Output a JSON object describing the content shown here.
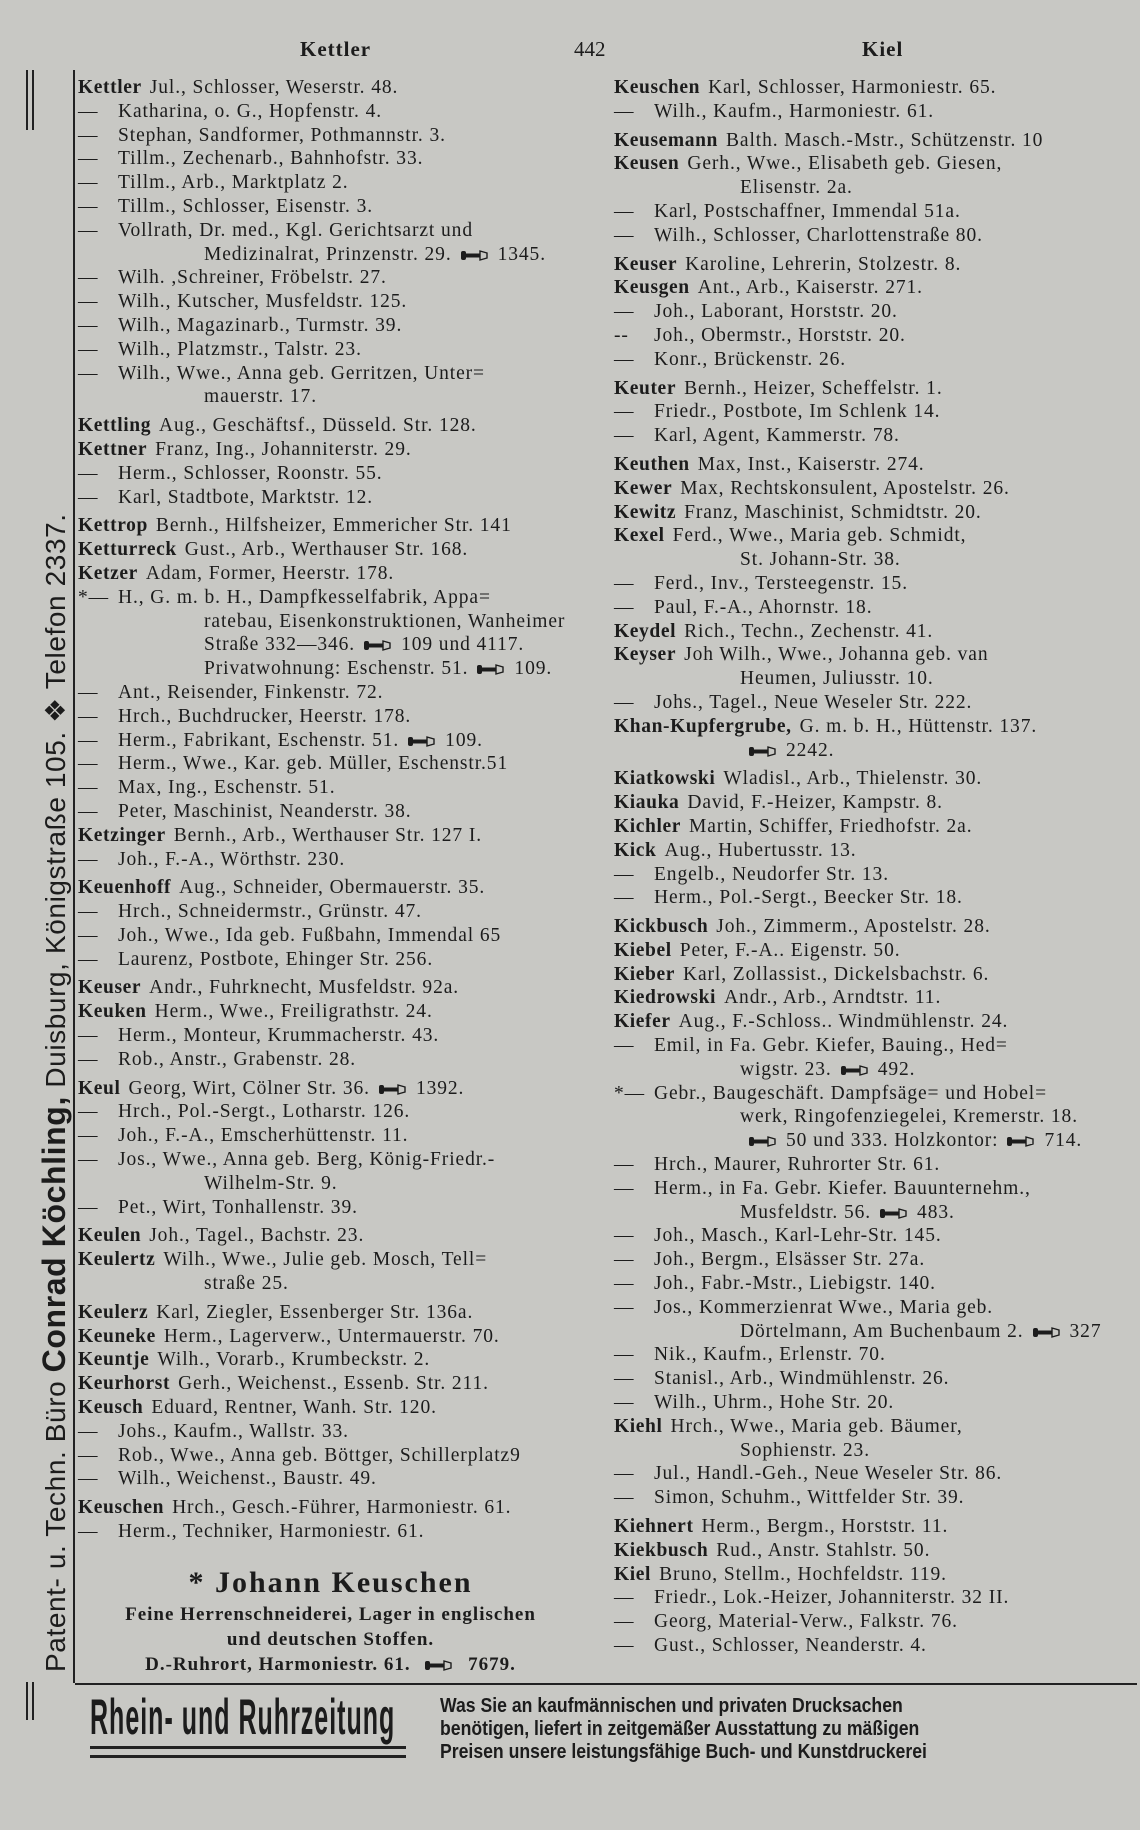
{
  "header": {
    "left": "Kettler",
    "page": "442",
    "right": "Kiel"
  },
  "side_text": {
    "pre": "Patent- u. Techn. Büro ",
    "name": "Conrad Köchling,",
    "post": " Duisburg, Königstraße 105. ❖ Telefon 2337."
  },
  "left_column": [
    {
      "b": "Kettler",
      "t": [
        "Jul., Schlosser, Weserstr. 48."
      ]
    },
    {
      "d": "—",
      "t": [
        "Katharina, o. G., Hopfenstr. 4."
      ]
    },
    {
      "d": "—",
      "t": [
        "Stephan, Sandformer, Pothmannstr. 3."
      ]
    },
    {
      "d": "—",
      "t": [
        "Tillm., Zechenarb., Bahnhofstr. 33."
      ]
    },
    {
      "d": "—",
      "t": [
        "Tillm., Arb., Marktplatz 2."
      ]
    },
    {
      "d": "—",
      "t": [
        "Tillm., Schlosser, Eisenstr. 3."
      ]
    },
    {
      "d": "—",
      "t": [
        "Vollrath, Dr. med., Kgl. Gerichtsarzt und"
      ]
    },
    {
      "i": 1,
      "t": [
        "Medizinalrat, Prinzenstr. 29.",
        "1345."
      ]
    },
    {
      "d": "—",
      "t": [
        "Wilh. ,Schreiner, Fröbelstr. 27."
      ]
    },
    {
      "d": "—",
      "t": [
        "Wilh., Kutscher, Musfeldstr. 125."
      ]
    },
    {
      "d": "—",
      "t": [
        "Wilh., Magazinarb., Turmstr. 39."
      ]
    },
    {
      "d": "—",
      "t": [
        "Wilh., Platzmstr., Talstr. 23."
      ]
    },
    {
      "d": "—",
      "t": [
        "Wilh., Wwe., Anna geb. Gerritzen, Unter="
      ]
    },
    {
      "i": 1,
      "t": [
        "mauerstr. 17."
      ]
    },
    {
      "g": 1,
      "b": "Kettling",
      "t": [
        "Aug., Geschäftsf., Düsseld. Str. 128."
      ]
    },
    {
      "b": "Kettner",
      "t": [
        "Franz, Ing., Johanniterstr. 29."
      ]
    },
    {
      "d": "—",
      "t": [
        "Herm., Schlosser, Roonstr. 55."
      ]
    },
    {
      "d": "—",
      "t": [
        "Karl, Stadtbote, Marktstr. 12."
      ]
    },
    {
      "g": 1,
      "b": "Kettrop",
      "t": [
        "Bernh., Hilfsheizer, Emmericher Str. 141"
      ]
    },
    {
      "b": "Ketturreck",
      "t": [
        "Gust., Arb., Werthauser Str. 168."
      ]
    },
    {
      "b": "Ketzer",
      "t": [
        "Adam, Former, Heerstr. 178."
      ]
    },
    {
      "d": "*—",
      "t": [
        "H., G. m. b. H., Dampfkesselfabrik, Appa="
      ]
    },
    {
      "i": 1,
      "t": [
        "ratebau, Eisenkonstruktionen, Wanheimer"
      ]
    },
    {
      "i": 1,
      "t": [
        "Straße 332—346.",
        "109 und 4117."
      ]
    },
    {
      "i": 1,
      "t": [
        "Privatwohnung: Eschenstr. 51.",
        "109."
      ]
    },
    {
      "d": "—",
      "t": [
        "Ant., Reisender, Finkenstr. 72."
      ]
    },
    {
      "d": "—",
      "t": [
        "Hrch., Buchdrucker, Heerstr. 178."
      ]
    },
    {
      "d": "—",
      "t": [
        "Herm., Fabrikant, Eschenstr. 51.",
        "109."
      ]
    },
    {
      "d": "—",
      "t": [
        "Herm., Wwe., Kar. geb. Müller, Eschenstr.51"
      ]
    },
    {
      "d": "—",
      "t": [
        "Max, Ing., Eschenstr. 51."
      ]
    },
    {
      "d": "—",
      "t": [
        "Peter, Maschinist, Neanderstr. 38."
      ]
    },
    {
      "b": "Ketzinger",
      "t": [
        "Bernh., Arb., Werthauser Str. 127 I."
      ]
    },
    {
      "d": "—",
      "t": [
        "Joh., F.-A., Wörthstr. 230."
      ]
    },
    {
      "g": 1,
      "b": "Keuenhoff",
      "t": [
        "Aug., Schneider, Obermauerstr. 35."
      ]
    },
    {
      "d": "—",
      "t": [
        "Hrch., Schneidermstr., Grünstr. 47."
      ]
    },
    {
      "d": "—",
      "t": [
        "Joh., Wwe., Ida geb. Fußbahn, Immendal 65"
      ]
    },
    {
      "d": "—",
      "t": [
        "Laurenz, Postbote, Ehinger Str. 256."
      ]
    },
    {
      "g": 1,
      "b": "Keuser",
      "t": [
        "Andr., Fuhrknecht, Musfeldstr. 92a."
      ]
    },
    {
      "b": "Keuken",
      "t": [
        "Herm., Wwe., Freiligrathstr. 24."
      ]
    },
    {
      "d": "—",
      "t": [
        "Herm., Monteur, Krummacherstr. 43."
      ]
    },
    {
      "d": "—",
      "t": [
        "Rob., Anstr., Grabenstr. 28."
      ]
    },
    {
      "g": 1,
      "b": "Keul",
      "t": [
        "Georg, Wirt, Cölner Str. 36.",
        "1392."
      ]
    },
    {
      "d": "—",
      "t": [
        "Hrch., Pol.-Sergt., Lotharstr. 126."
      ]
    },
    {
      "d": "—",
      "t": [
        "Joh., F.-A., Emscherhüttenstr. 11."
      ]
    },
    {
      "d": "—",
      "t": [
        "Jos., Wwe., Anna geb. Berg, König-Friedr.-"
      ]
    },
    {
      "i": 1,
      "t": [
        "Wilhelm-Str. 9."
      ]
    },
    {
      "d": "—",
      "t": [
        "Pet., Wirt, Tonhallenstr. 39."
      ]
    },
    {
      "g": 1,
      "b": "Keulen",
      "t": [
        "Joh., Tagel., Bachstr. 23."
      ]
    },
    {
      "b": "Keulertz",
      "t": [
        "Wilh., Wwe., Julie geb. Mosch, Tell="
      ]
    },
    {
      "i": 1,
      "t": [
        "straße 25."
      ]
    },
    {
      "g": 1,
      "b": "Keulerz",
      "t": [
        "Karl, Ziegler, Essenberger Str. 136a."
      ]
    },
    {
      "b": "Keuneke",
      "t": [
        "Herm., Lagerverw., Untermauerstr. 70."
      ]
    },
    {
      "b": "Keuntje",
      "t": [
        "Wilh., Vorarb., Krumbeckstr. 2."
      ]
    },
    {
      "b": "Keurhorst",
      "t": [
        "Gerh., Weichenst., Essenb. Str. 211."
      ]
    },
    {
      "b": "Keusch",
      "t": [
        "Eduard, Rentner, Wanh. Str. 120."
      ]
    },
    {
      "d": "—",
      "t": [
        "Johs., Kaufm., Wallstr. 33."
      ]
    },
    {
      "d": "—",
      "t": [
        "Rob., Wwe., Anna geb. Böttger, Schillerplatz9"
      ]
    },
    {
      "d": "—",
      "t": [
        "Wilh., Weichenst., Baustr. 49."
      ]
    },
    {
      "g": 1,
      "b": "Keuschen",
      "t": [
        "Hrch., Gesch.-Führer, Harmoniestr. 61."
      ]
    },
    {
      "d": "—",
      "t": [
        "Herm., Techniker, Harmoniestr. 61."
      ]
    }
  ],
  "advert": {
    "title": "* Johann Keuschen",
    "line1": "Feine Herrenschneiderei, Lager in englischen",
    "line2": "und deutschen Stoffen.",
    "line3": "D.-Ruhrort, Harmoniestr. 61.",
    "phone": "7679."
  },
  "right_column": [
    {
      "b": "Keuschen",
      "t": [
        "Karl, Schlosser, Harmoniestr. 65."
      ]
    },
    {
      "d": "—",
      "t": [
        "Wilh., Kaufm., Harmoniestr. 61."
      ]
    },
    {
      "g": 1,
      "b": "Keusemann",
      "t": [
        "Balth. Masch.-Mstr., Schützenstr. 10"
      ]
    },
    {
      "b": "Keusen",
      "t": [
        "Gerh., Wwe., Elisabeth geb. Giesen,"
      ]
    },
    {
      "i": 1,
      "t": [
        "Elisenstr. 2a."
      ]
    },
    {
      "d": "—",
      "t": [
        "Karl, Postschaffner, Immendal 51a."
      ]
    },
    {
      "d": "—",
      "t": [
        "Wilh., Schlosser, Charlottenstraße 80."
      ]
    },
    {
      "g": 1,
      "b": "Keuser",
      "t": [
        "Karoline, Lehrerin, Stolzestr. 8."
      ]
    },
    {
      "b": "Keusgen",
      "t": [
        "Ant., Arb., Kaiserstr. 271."
      ]
    },
    {
      "d": "—",
      "t": [
        "Joh., Laborant, Horststr. 20."
      ]
    },
    {
      "d": "--",
      "t": [
        "Joh., Obermstr., Horststr. 20."
      ]
    },
    {
      "d": "—",
      "t": [
        "Konr., Brückenstr. 26."
      ]
    },
    {
      "g": 1,
      "b": "Keuter",
      "t": [
        "Bernh., Heizer, Scheffelstr. 1."
      ]
    },
    {
      "d": "—",
      "t": [
        "Friedr., Postbote, Im Schlenk 14."
      ]
    },
    {
      "d": "—",
      "t": [
        "Karl, Agent, Kammerstr. 78."
      ]
    },
    {
      "g": 1,
      "b": "Keuthen",
      "t": [
        "Max, Inst., Kaiserstr. 274."
      ]
    },
    {
      "b": "Kewer",
      "t": [
        "Max, Rechtskonsulent, Apostelstr. 26."
      ]
    },
    {
      "b": "Kewitz",
      "t": [
        "Franz, Maschinist, Schmidtstr. 20."
      ]
    },
    {
      "b": "Kexel",
      "t": [
        "Ferd., Wwe., Maria geb. Schmidt,"
      ]
    },
    {
      "i": 1,
      "t": [
        "St. Johann-Str. 38."
      ]
    },
    {
      "d": "—",
      "t": [
        "Ferd., Inv., Tersteegenstr. 15."
      ]
    },
    {
      "d": "—",
      "t": [
        "Paul, F.-A., Ahornstr. 18."
      ]
    },
    {
      "b": "Keydel",
      "t": [
        "Rich., Techn., Zechenstr. 41."
      ]
    },
    {
      "b": "Keyser",
      "t": [
        "Joh  Wilh., Wwe., Johanna geb. van"
      ]
    },
    {
      "i": 1,
      "t": [
        "Heumen, Juliusstr. 10."
      ]
    },
    {
      "d": "—",
      "t": [
        "Johs., Tagel., Neue Weseler Str. 222."
      ]
    },
    {
      "b": "Khan-Kupfergrube,",
      "t": [
        "G. m. b. H., Hüttenstr. 137."
      ]
    },
    {
      "i": 1,
      "t": [
        "",
        "2242."
      ]
    },
    {
      "g": 1,
      "b": "Kiatkowski",
      "t": [
        "Wladisl., Arb., Thielenstr. 30."
      ]
    },
    {
      "b": "Kiauka",
      "t": [
        "David, F.-Heizer, Kampstr. 8."
      ]
    },
    {
      "b": "Kichler",
      "t": [
        "Martin, Schiffer, Friedhofstr. 2a."
      ]
    },
    {
      "b": "Kick",
      "t": [
        "Aug., Hubertusstr. 13."
      ]
    },
    {
      "d": "—",
      "t": [
        "Engelb., Neudorfer Str. 13."
      ]
    },
    {
      "d": "—",
      "t": [
        "Herm., Pol.-Sergt., Beecker Str. 18."
      ]
    },
    {
      "g": 1,
      "b": "Kickbusch",
      "t": [
        "Joh., Zimmerm., Apostelstr. 28."
      ]
    },
    {
      "b": "Kiebel",
      "t": [
        "Peter, F.-A.. Eigenstr. 50."
      ]
    },
    {
      "b": "Kieber",
      "t": [
        "Karl, Zollassist., Dickelsbachstr. 6."
      ]
    },
    {
      "b": "Kiedrowski",
      "t": [
        "Andr., Arb., Arndtstr. 11."
      ]
    },
    {
      "b": "Kiefer",
      "t": [
        "Aug., F.-Schloss.. Windmühlenstr. 24."
      ]
    },
    {
      "d": "—",
      "t": [
        "Emil, in Fa. Gebr. Kiefer, Bauing., Hed="
      ]
    },
    {
      "i": 1,
      "t": [
        "wigstr. 23.",
        "492."
      ]
    },
    {
      "d": "*—",
      "t": [
        "Gebr., Baugeschäft. Dampfsäge= und Hobel="
      ]
    },
    {
      "i": 1,
      "t": [
        "werk, Ringofenziegelei, Kremerstr. 18."
      ]
    },
    {
      "i": 1,
      "t": [
        "",
        "50 und 333. Holzkontor:",
        "714."
      ]
    },
    {
      "d": "—",
      "t": [
        "Hrch., Maurer, Ruhrorter Str. 61."
      ]
    },
    {
      "d": "—",
      "t": [
        "Herm., in Fa. Gebr. Kiefer. Bauunternehm.,"
      ]
    },
    {
      "i": 1,
      "t": [
        "Musfeldstr. 56.",
        "483."
      ]
    },
    {
      "d": "—",
      "t": [
        "Joh., Masch., Karl-Lehr-Str. 145."
      ]
    },
    {
      "d": "—",
      "t": [
        "Joh., Bergm., Elsässer Str. 27a."
      ]
    },
    {
      "d": "—",
      "t": [
        "Joh., Fabr.-Mstr., Liebigstr. 140."
      ]
    },
    {
      "d": "—",
      "t": [
        "Jos., Kommerzienrat Wwe., Maria geb."
      ]
    },
    {
      "i": 1,
      "t": [
        "Dörtelmann, Am Buchenbaum 2.",
        "327"
      ]
    },
    {
      "d": "—",
      "t": [
        "Nik., Kaufm., Erlenstr. 70."
      ]
    },
    {
      "d": "—",
      "t": [
        "Stanisl., Arb., Windmühlenstr. 26."
      ]
    },
    {
      "d": "—",
      "t": [
        "Wilh., Uhrm., Hohe Str. 20."
      ]
    },
    {
      "b": "Kiehl",
      "t": [
        "Hrch., Wwe., Maria geb. Bäumer,"
      ]
    },
    {
      "i": 1,
      "t": [
        "Sophienstr. 23."
      ]
    },
    {
      "d": "—",
      "t": [
        "Jul., Handl.-Geh., Neue Weseler Str. 86."
      ]
    },
    {
      "d": "—",
      "t": [
        "Simon, Schuhm., Wittfelder Str. 39."
      ]
    },
    {
      "g": 1,
      "b": "Kiehnert",
      "t": [
        "Herm., Bergm., Horststr. 11."
      ]
    },
    {
      "b": "Kiekbusch",
      "t": [
        "Rud., Anstr. Stahlstr. 50."
      ]
    },
    {
      "b": "Kiel",
      "t": [
        "Bruno, Stellm., Hochfeldstr. 119."
      ]
    },
    {
      "d": "—",
      "t": [
        "Friedr., Lok.-Heizer, Johanniterstr. 32 II."
      ]
    },
    {
      "d": "—",
      "t": [
        "Georg, Material-Verw., Falkstr. 76."
      ]
    },
    {
      "d": "—",
      "t": [
        "Gust., Schlosser, Neanderstr. 4."
      ]
    }
  ],
  "banner": {
    "newspaper": "Rhein- und Ruhrzeitung",
    "promo": [
      "Was Sie an kaufmännischen und privaten Drucksachen",
      "benötigen, liefert in zeitgemäßer Ausstattung zu mäßigen",
      "Preisen unsere leistungsfähige Buch- und Kunstdruckerei"
    ]
  },
  "icons": {
    "phone": "telephone-handset-icon"
  },
  "colors": {
    "paper": "#c8c8c4",
    "ink": "#1c1c1c"
  }
}
